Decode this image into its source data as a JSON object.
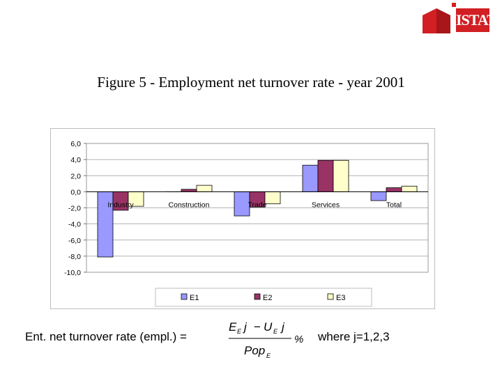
{
  "logo": {
    "text": "ISTAT",
    "color": "#d11f24"
  },
  "figure_title": "Figure 5 - Employment net turnover rate - year 2001",
  "chart_data": {
    "type": "bar",
    "categories": [
      "Industry",
      "Construction",
      "Trade",
      "Services",
      "Total"
    ],
    "series": [
      {
        "name": "E1",
        "values": [
          -8.1,
          0.0,
          -3.0,
          3.3,
          -1.1
        ],
        "color": "#9999ff"
      },
      {
        "name": "E2",
        "values": [
          -2.3,
          0.3,
          -1.9,
          3.9,
          0.5
        ],
        "color": "#993366"
      },
      {
        "name": "E3",
        "values": [
          -1.8,
          0.8,
          -1.5,
          3.9,
          0.7
        ],
        "color": "#ffffcc"
      }
    ],
    "y_ticks": [
      "6,0",
      "4,0",
      "2,0",
      "0,0",
      "-2,0",
      "-4,0",
      "-6,0",
      "-8,0",
      "-10,0"
    ],
    "ylim": [
      -10,
      6
    ],
    "grid": true,
    "legend_position": "bottom",
    "plot_background": "#c0c0c0",
    "title": "",
    "xlabel": "",
    "ylabel": ""
  },
  "formula": {
    "label": "Ent. net turnover rate (empl.) =",
    "numerator_left": "E",
    "numerator_left_sub": "E",
    "numerator_j1": "j",
    "numerator_minus": "−",
    "numerator_right": "U",
    "numerator_right_sub": "E",
    "numerator_j2": "j",
    "denominator": "Pop",
    "denominator_sub": "E",
    "percent": "%",
    "where": "where j=1,2,3"
  }
}
